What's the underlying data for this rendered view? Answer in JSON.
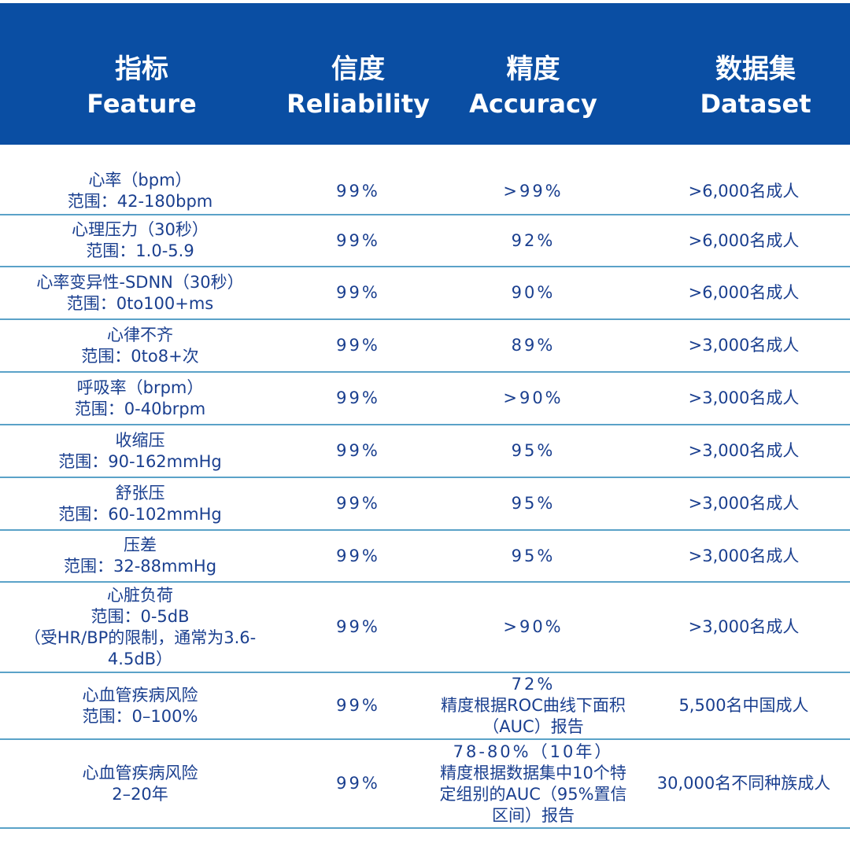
{
  "header": {
    "feature_zh": "指标",
    "feature_en": "Feature",
    "reliability_zh": "信度",
    "reliability_en": "Reliability",
    "accuracy_zh": "精度",
    "accuracy_en": "Accuracy",
    "dataset_zh": "数据集",
    "dataset_en": "Dataset"
  },
  "rows": [
    {
      "feature": [
        "心率（bpm）",
        "范围：42-180bpm"
      ],
      "reliability": "99%",
      "accuracy": [
        ">99%"
      ],
      "dataset": ">6,000名成人"
    },
    {
      "feature": [
        "心理压力（30秒）",
        "范围：1.0-5.9"
      ],
      "reliability": "99%",
      "accuracy": [
        "92%"
      ],
      "dataset": ">6,000名成人"
    },
    {
      "feature": [
        "心率变异性-SDNN（30秒）",
        "范围：0to100+ms"
      ],
      "reliability": "99%",
      "accuracy": [
        "90%"
      ],
      "dataset": ">6,000名成人"
    },
    {
      "feature": [
        "心律不齐",
        "范围：0to8+次"
      ],
      "reliability": "99%",
      "accuracy": [
        "89%"
      ],
      "dataset": ">3,000名成人"
    },
    {
      "feature": [
        "呼吸率（brpm）",
        "范围：0-40brpm"
      ],
      "reliability": "99%",
      "accuracy": [
        ">90%"
      ],
      "dataset": ">3,000名成人"
    },
    {
      "feature": [
        "收缩压",
        "范围：90-162mmHg"
      ],
      "reliability": "99%",
      "accuracy": [
        "95%"
      ],
      "dataset": ">3,000名成人"
    },
    {
      "feature": [
        "舒张压",
        "范围：60-102mmHg"
      ],
      "reliability": "99%",
      "accuracy": [
        "95%"
      ],
      "dataset": ">3,000名成人"
    },
    {
      "feature": [
        "压差",
        "范围：32-88mmHg"
      ],
      "reliability": "99%",
      "accuracy": [
        "95%"
      ],
      "dataset": ">3,000名成人"
    },
    {
      "feature": [
        "心脏负荷",
        "范围：0-5dB",
        "（受HR/BP的限制，通常为3.6-",
        "4.5dB）"
      ],
      "reliability": "99%",
      "accuracy": [
        ">90%"
      ],
      "dataset": ">3,000名成人"
    },
    {
      "feature": [
        "心血管疾病风险",
        "范围：0–100%"
      ],
      "reliability": "99%",
      "accuracy": [
        "72%",
        "精度根据ROC曲线下面积",
        "（AUC）报告"
      ],
      "dataset": "5,500名中国成人"
    },
    {
      "feature": [
        "心血管疾病风险",
        "2–20年"
      ],
      "reliability": "99%",
      "accuracy": [
        "78-80%（10年）",
        "精度根据数据集中10个特",
        "定组别的AUC（95%置信",
        "区间）报告"
      ],
      "dataset": "30,000名不同种族成人"
    }
  ]
}
